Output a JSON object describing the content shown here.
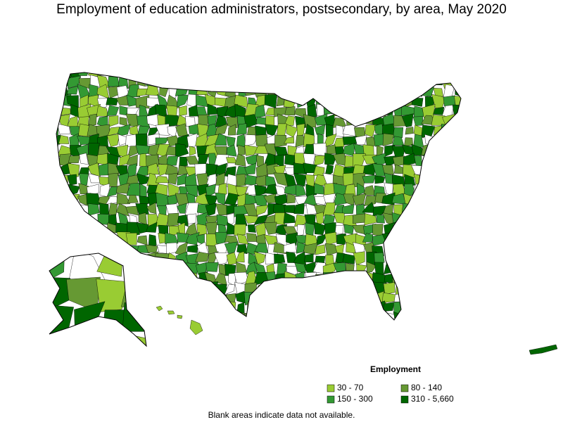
{
  "title": "Employment of education administrators, postsecondary, by area, May 2020",
  "legend": {
    "title": "Employment",
    "items": [
      {
        "label": "30 - 70",
        "color": "#99cc33"
      },
      {
        "label": "80 - 140",
        "color": "#669933"
      },
      {
        "label": "150 - 300",
        "color": "#339933"
      },
      {
        "label": "310 - 5,660",
        "color": "#006600"
      }
    ]
  },
  "note": "Blank areas indicate data not available."
}
